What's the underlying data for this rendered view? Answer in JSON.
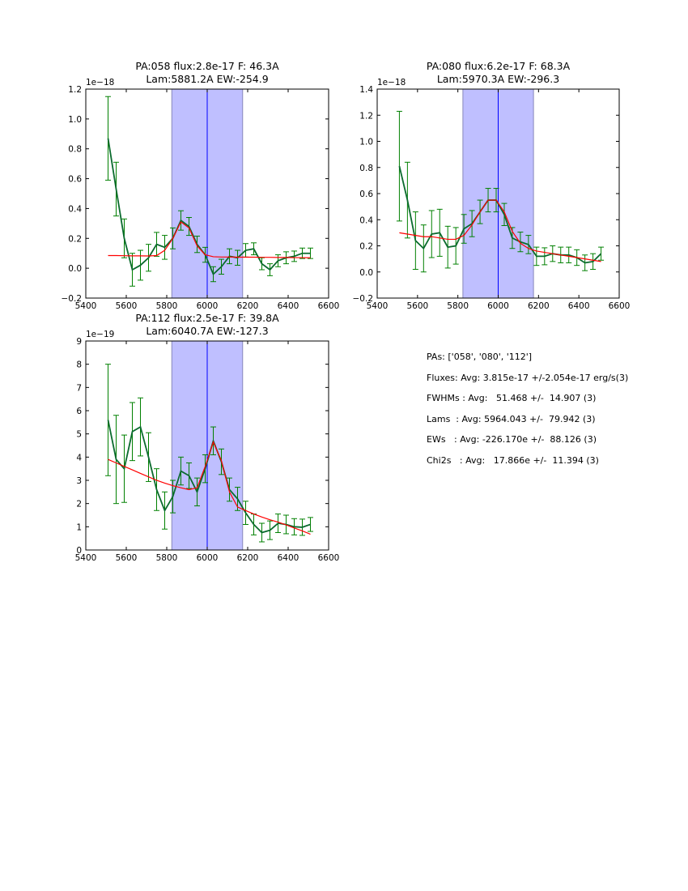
{
  "chart_data": [
    {
      "type": "line",
      "title": [
        "PA:058 flux:2.8e-17 F: 46.3A",
        "Lam:5881.2A EW:-254.9"
      ],
      "offset_label": "1e−18",
      "xlim": [
        5400,
        6600
      ],
      "ylim": [
        -0.2,
        1.2
      ],
      "xticks": [
        5400,
        5600,
        5800,
        6000,
        6200,
        6400,
        6600
      ],
      "yticks": [
        -0.2,
        0.0,
        0.2,
        0.4,
        0.6,
        0.8,
        1.0,
        1.2
      ],
      "ytick_labels": [
        "−0.2",
        "0.0",
        "0.2",
        "0.4",
        "0.6",
        "0.8",
        "1.0",
        "1.2"
      ],
      "span": [
        5825,
        6175
      ],
      "vline": 6000,
      "x": [
        5510,
        5550,
        5590,
        5630,
        5670,
        5710,
        5750,
        5790,
        5830,
        5870,
        5910,
        5950,
        5990,
        6030,
        6070,
        6110,
        6150,
        6190,
        6230,
        6270,
        6310,
        6350,
        6390,
        6430,
        6470,
        6510
      ],
      "series": [
        {
          "name": "data",
          "values": [
            0.87,
            0.53,
            0.2,
            -0.01,
            0.02,
            0.07,
            0.16,
            0.14,
            0.2,
            0.32,
            0.28,
            0.16,
            0.09,
            -0.04,
            0.01,
            0.08,
            0.07,
            0.12,
            0.13,
            0.03,
            -0.01,
            0.05,
            0.07,
            0.08,
            0.1,
            0.1
          ],
          "errors": [
            0.28,
            0.18,
            0.13,
            0.11,
            0.1,
            0.09,
            0.08,
            0.08,
            0.07,
            0.065,
            0.06,
            0.055,
            0.05,
            0.05,
            0.05,
            0.05,
            0.05,
            0.045,
            0.04,
            0.04,
            0.04,
            0.04,
            0.04,
            0.035,
            0.035,
            0.035
          ]
        },
        {
          "name": "fit",
          "values": [
            0.085,
            0.085,
            0.084,
            0.083,
            0.083,
            0.082,
            0.085,
            0.12,
            0.2,
            0.31,
            0.27,
            0.15,
            0.09,
            0.077,
            0.075,
            0.075,
            0.074,
            0.074,
            0.074,
            0.073,
            0.073,
            0.072,
            0.072,
            0.071,
            0.071,
            0.07
          ]
        }
      ]
    },
    {
      "type": "line",
      "title": [
        "PA:080 flux:6.2e-17 F: 68.3A",
        "Lam:5970.3A EW:-296.3"
      ],
      "offset_label": "1e−18",
      "xlim": [
        5400,
        6600
      ],
      "ylim": [
        -0.2,
        1.4
      ],
      "xticks": [
        5400,
        5600,
        5800,
        6000,
        6200,
        6400,
        6600
      ],
      "yticks": [
        -0.2,
        0.0,
        0.2,
        0.4,
        0.6,
        0.8,
        1.0,
        1.2,
        1.4
      ],
      "ytick_labels": [
        "−0.2",
        "0.0",
        "0.2",
        "0.4",
        "0.6",
        "0.8",
        "1.0",
        "1.2",
        "1.4"
      ],
      "span": [
        5825,
        6175
      ],
      "vline": 6000,
      "x": [
        5510,
        5550,
        5590,
        5630,
        5670,
        5710,
        5750,
        5790,
        5830,
        5870,
        5910,
        5950,
        5990,
        6030,
        6070,
        6110,
        6150,
        6190,
        6230,
        6270,
        6310,
        6350,
        6390,
        6430,
        6470,
        6510
      ],
      "series": [
        {
          "name": "data",
          "values": [
            0.81,
            0.55,
            0.24,
            0.18,
            0.29,
            0.3,
            0.19,
            0.2,
            0.33,
            0.37,
            0.46,
            0.55,
            0.55,
            0.44,
            0.26,
            0.23,
            0.21,
            0.12,
            0.12,
            0.14,
            0.13,
            0.13,
            0.11,
            0.07,
            0.08,
            0.14
          ],
          "errors": [
            0.42,
            0.29,
            0.22,
            0.18,
            0.18,
            0.18,
            0.16,
            0.14,
            0.11,
            0.1,
            0.09,
            0.09,
            0.09,
            0.085,
            0.08,
            0.075,
            0.07,
            0.07,
            0.065,
            0.06,
            0.06,
            0.06,
            0.06,
            0.06,
            0.06,
            0.05
          ]
        },
        {
          "name": "fit",
          "values": [
            0.3,
            0.29,
            0.28,
            0.27,
            0.27,
            0.26,
            0.25,
            0.25,
            0.28,
            0.36,
            0.46,
            0.55,
            0.55,
            0.46,
            0.31,
            0.22,
            0.18,
            0.16,
            0.15,
            0.14,
            0.13,
            0.12,
            0.11,
            0.1,
            0.09,
            0.08
          ]
        }
      ]
    },
    {
      "type": "line",
      "title": [
        "PA:112 flux:2.5e-17 F: 39.8A",
        "Lam:6040.7A EW:-127.3"
      ],
      "offset_label": "1e−19",
      "xlim": [
        5400,
        6600
      ],
      "ylim": [
        0,
        9
      ],
      "xticks": [
        5400,
        5600,
        5800,
        6000,
        6200,
        6400,
        6600
      ],
      "yticks": [
        0,
        1,
        2,
        3,
        4,
        5,
        6,
        7,
        8,
        9
      ],
      "ytick_labels": [
        "0",
        "1",
        "2",
        "3",
        "4",
        "5",
        "6",
        "7",
        "8",
        "9"
      ],
      "span": [
        5825,
        6175
      ],
      "vline": 6000,
      "x": [
        5510,
        5550,
        5590,
        5630,
        5670,
        5710,
        5750,
        5790,
        5830,
        5870,
        5910,
        5950,
        5990,
        6030,
        6070,
        6110,
        6150,
        6190,
        6230,
        6270,
        6310,
        6350,
        6390,
        6430,
        6470,
        6510
      ],
      "series": [
        {
          "name": "data",
          "values": [
            5.6,
            3.9,
            3.5,
            5.1,
            5.3,
            4.0,
            2.6,
            1.7,
            2.3,
            3.4,
            3.2,
            2.5,
            3.5,
            4.7,
            3.8,
            2.6,
            2.2,
            1.6,
            1.1,
            0.75,
            0.85,
            1.15,
            1.1,
            1.0,
            0.98,
            1.1
          ],
          "errors": [
            2.4,
            1.9,
            1.45,
            1.25,
            1.25,
            1.05,
            0.9,
            0.8,
            0.7,
            0.6,
            0.55,
            0.6,
            0.6,
            0.6,
            0.55,
            0.5,
            0.5,
            0.5,
            0.45,
            0.4,
            0.4,
            0.4,
            0.4,
            0.35,
            0.35,
            0.3
          ]
        },
        {
          "name": "fit",
          "values": [
            3.9,
            3.75,
            3.6,
            3.45,
            3.3,
            3.15,
            3.0,
            2.88,
            2.77,
            2.68,
            2.6,
            2.68,
            3.6,
            4.65,
            3.85,
            2.5,
            1.85,
            1.7,
            1.55,
            1.42,
            1.3,
            1.2,
            1.08,
            0.95,
            0.82,
            0.68
          ]
        }
      ]
    }
  ],
  "stats": [
    "PAs: ['058', '080', '112']",
    "Fluxes: Avg: 3.815e-17 +/-2.054e-17 erg/s(3)",
    "FWHMs : Avg:   51.468 +/-  14.907 (3)",
    "Lams  : Avg: 5964.043 +/-  79.942 (3)",
    "EWs   : Avg: -226.170e +/-  88.126 (3)",
    "Chi2s   : Avg:   17.866e +/-  11.394 (3)"
  ],
  "colors": {
    "data": "#0b6b2e",
    "errorbar": "#008000",
    "fit": "#ff0000",
    "span": "#bfbfff",
    "span_edge": "#8888bb",
    "vline": "#0000ff"
  }
}
